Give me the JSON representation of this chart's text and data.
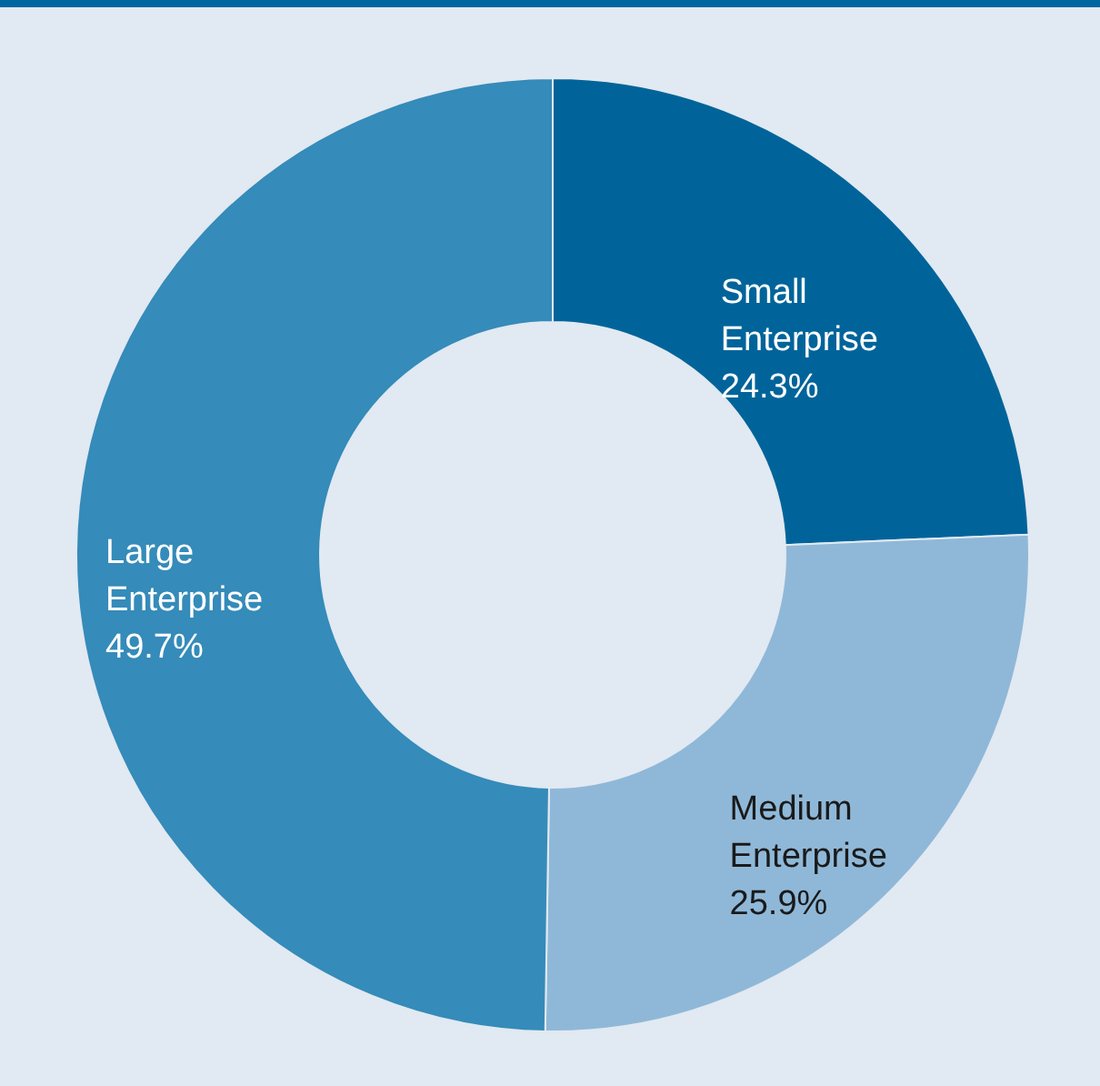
{
  "chart_data": {
    "type": "donut",
    "categories": [
      "Small Enterprise",
      "Medium Enterprise",
      "Large Enterprise"
    ],
    "values": [
      24.3,
      25.9,
      49.7
    ],
    "value_labels": [
      "24.3%",
      "25.9%",
      "49.7%"
    ],
    "colors": [
      "#00649a",
      "#8fb8d8",
      "#358bb9"
    ]
  }
}
